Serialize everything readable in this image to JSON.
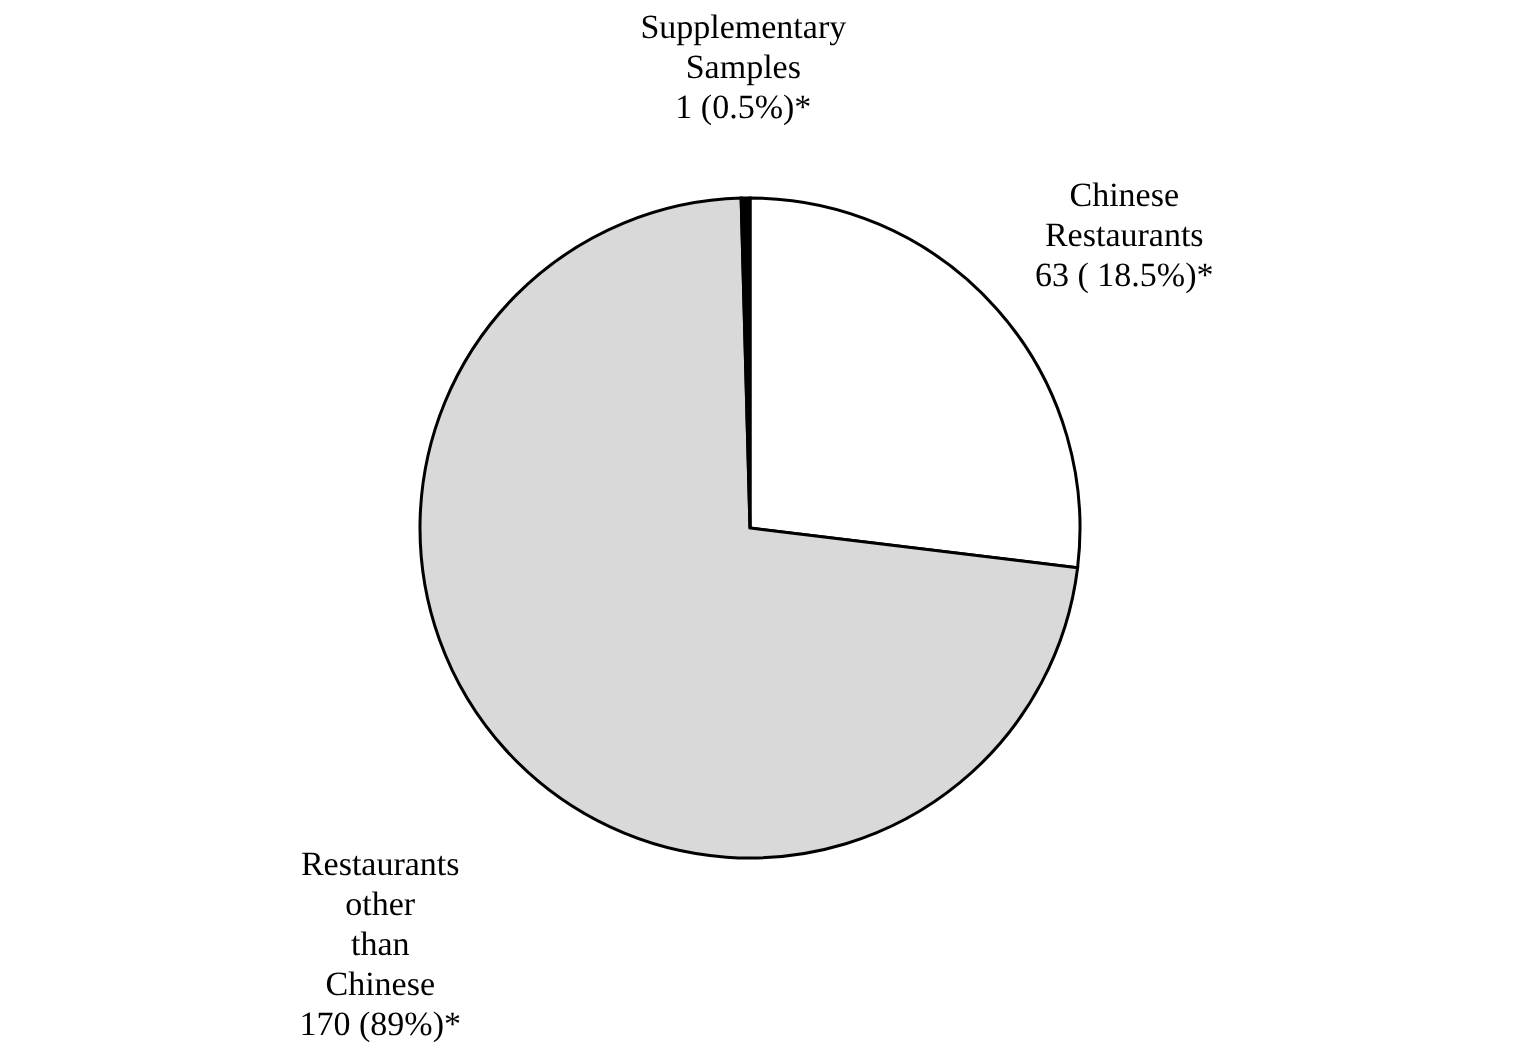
{
  "chart_data": {
    "type": "pie",
    "categories": [
      "Chinese Restaurants",
      "Restaurants other than Chinese",
      "Supplementary Samples"
    ],
    "values": [
      63,
      170,
      1
    ],
    "colors": [
      "#ffffff",
      "#d9d9d9",
      "#000000"
    ],
    "value_labels": [
      "63 ( 18.5%)*",
      "170 (89%)*",
      "1 (0.5%)*"
    ],
    "legend": false
  }
}
